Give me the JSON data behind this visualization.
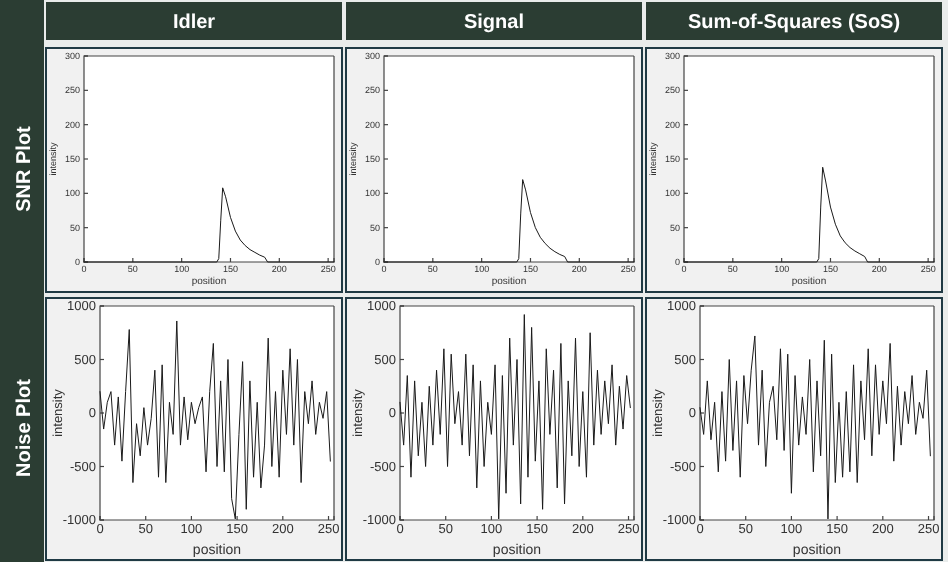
{
  "chart_data": [
    {
      "type": "line",
      "title": "Idler",
      "annotations": [
        "SNR Plot"
      ],
      "xlabel": "position",
      "ylabel": "intensity",
      "xlim": [
        0,
        256
      ],
      "xticks": [
        0,
        50,
        100,
        150,
        200,
        250
      ],
      "ylim": [
        0,
        300
      ],
      "yticks": [
        0,
        50,
        100,
        150,
        200,
        250,
        300
      ],
      "x": [
        0,
        136,
        138,
        140,
        142,
        145,
        150,
        155,
        160,
        165,
        170,
        175,
        180,
        185,
        188,
        256
      ],
      "series": [
        {
          "color": "#1a1a1a",
          "values": [
            0,
            0,
            5,
            60,
            108,
            95,
            65,
            45,
            32,
            24,
            18,
            14,
            10,
            7,
            0,
            0
          ]
        }
      ]
    },
    {
      "type": "line",
      "title": "Signal",
      "xlabel": "position",
      "ylabel": "intensity",
      "xlim": [
        0,
        256
      ],
      "xticks": [
        0,
        50,
        100,
        150,
        200,
        250
      ],
      "ylim": [
        0,
        300
      ],
      "yticks": [
        0,
        50,
        100,
        150,
        200,
        250,
        300
      ],
      "x": [
        0,
        136,
        138,
        140,
        142,
        145,
        150,
        155,
        160,
        165,
        170,
        175,
        180,
        185,
        188,
        256
      ],
      "series": [
        {
          "color": "#1a1a1a",
          "values": [
            0,
            0,
            5,
            70,
            120,
            105,
            72,
            50,
            36,
            27,
            20,
            15,
            11,
            8,
            0,
            0
          ]
        }
      ]
    },
    {
      "type": "line",
      "title": "Sum-of-Squares (SoS)",
      "xlabel": "position",
      "ylabel": "intensity",
      "xlim": [
        0,
        256
      ],
      "xticks": [
        0,
        50,
        100,
        150,
        200,
        250
      ],
      "ylim": [
        0,
        300
      ],
      "yticks": [
        0,
        50,
        100,
        150,
        200,
        250,
        300
      ],
      "x": [
        0,
        136,
        138,
        140,
        142,
        145,
        150,
        155,
        160,
        165,
        170,
        175,
        180,
        185,
        188,
        256
      ],
      "series": [
        {
          "color": "#1a1a1a",
          "values": [
            0,
            0,
            5,
            80,
            138,
            118,
            80,
            55,
            38,
            28,
            21,
            16,
            12,
            8,
            0,
            0
          ]
        }
      ]
    },
    {
      "type": "line",
      "annotations": [
        "Noise Plot"
      ],
      "xlabel": "position",
      "ylabel": "intensity",
      "xlim": [
        0,
        256
      ],
      "xticks": [
        0,
        50,
        100,
        150,
        200,
        250
      ],
      "ylim": [
        -1000,
        1000
      ],
      "yticks": [
        -1000,
        -500,
        0,
        500,
        1000
      ],
      "x": [
        0,
        4,
        8,
        12,
        16,
        20,
        24,
        28,
        32,
        36,
        40,
        44,
        48,
        52,
        56,
        60,
        64,
        68,
        72,
        76,
        80,
        84,
        88,
        92,
        96,
        100,
        104,
        108,
        112,
        116,
        120,
        124,
        128,
        132,
        136,
        140,
        144,
        148,
        152,
        156,
        160,
        164,
        168,
        172,
        176,
        180,
        184,
        188,
        192,
        196,
        200,
        204,
        208,
        212,
        216,
        220,
        224,
        228,
        232,
        236,
        240,
        244,
        248,
        252
      ],
      "series": [
        {
          "color": "#1a1a1a",
          "values": [
            200,
            -150,
            100,
            200,
            -300,
            150,
            -450,
            200,
            780,
            -650,
            -100,
            -400,
            50,
            -300,
            -50,
            400,
            -600,
            450,
            -650,
            100,
            -200,
            860,
            -300,
            150,
            -250,
            100,
            -100,
            50,
            150,
            -550,
            200,
            650,
            -500,
            300,
            -550,
            500,
            -800,
            -990,
            -200,
            480,
            -900,
            300,
            -600,
            100,
            -700,
            -300,
            700,
            -500,
            200,
            -600,
            400,
            -200,
            600,
            -300,
            500,
            -650,
            200,
            -100,
            300,
            -200,
            100,
            -50,
            200,
            -450
          ]
        }
      ]
    },
    {
      "type": "line",
      "xlabel": "position",
      "ylabel": "intensity",
      "xlim": [
        0,
        256
      ],
      "xticks": [
        0,
        50,
        100,
        150,
        200,
        250
      ],
      "ylim": [
        -1000,
        1000
      ],
      "yticks": [
        -1000,
        -500,
        0,
        500,
        1000
      ],
      "x": [
        0,
        4,
        8,
        12,
        16,
        20,
        24,
        28,
        32,
        36,
        40,
        44,
        48,
        52,
        56,
        60,
        64,
        68,
        72,
        76,
        80,
        84,
        88,
        92,
        96,
        100,
        104,
        108,
        112,
        116,
        120,
        124,
        128,
        132,
        136,
        140,
        144,
        148,
        152,
        156,
        160,
        164,
        168,
        172,
        176,
        180,
        184,
        188,
        192,
        196,
        200,
        204,
        208,
        212,
        216,
        220,
        224,
        228,
        232,
        236,
        240,
        244,
        248,
        252
      ],
      "series": [
        {
          "color": "#1a1a1a",
          "values": [
            100,
            -300,
            350,
            -600,
            300,
            -400,
            100,
            -500,
            250,
            -300,
            400,
            -200,
            600,
            -500,
            550,
            -100,
            200,
            -300,
            550,
            -400,
            450,
            -700,
            300,
            -500,
            100,
            -200,
            450,
            -990,
            350,
            -750,
            700,
            -300,
            500,
            -850,
            920,
            -600,
            800,
            -450,
            300,
            -900,
            600,
            -200,
            400,
            -700,
            650,
            -850,
            300,
            -400,
            700,
            -500,
            200,
            -600,
            750,
            -300,
            400,
            -200,
            300,
            -100,
            450,
            -300,
            250,
            -150,
            350,
            50
          ]
        }
      ]
    },
    {
      "type": "line",
      "xlabel": "position",
      "ylabel": "intensity",
      "xlim": [
        0,
        256
      ],
      "xticks": [
        0,
        50,
        100,
        150,
        200,
        250
      ],
      "ylim": [
        -1000,
        1000
      ],
      "yticks": [
        -1000,
        -500,
        0,
        500,
        1000
      ],
      "x": [
        0,
        4,
        8,
        12,
        16,
        20,
        24,
        28,
        32,
        36,
        40,
        44,
        48,
        52,
        56,
        60,
        64,
        68,
        72,
        76,
        80,
        84,
        88,
        92,
        96,
        100,
        104,
        108,
        112,
        116,
        120,
        124,
        128,
        132,
        136,
        140,
        144,
        148,
        152,
        156,
        160,
        164,
        168,
        172,
        176,
        180,
        184,
        188,
        192,
        196,
        200,
        204,
        208,
        212,
        216,
        220,
        224,
        228,
        232,
        236,
        240,
        244,
        248,
        252
      ],
      "series": [
        {
          "color": "#1a1a1a",
          "values": [
            50,
            -200,
            300,
            -250,
            100,
            -550,
            200,
            -450,
            500,
            -350,
            300,
            -600,
            350,
            -100,
            400,
            720,
            -300,
            400,
            -500,
            100,
            250,
            -250,
            600,
            -350,
            550,
            -750,
            350,
            -300,
            150,
            -200,
            500,
            -550,
            300,
            -400,
            680,
            -990,
            550,
            -650,
            100,
            -600,
            200,
            -550,
            450,
            -650,
            300,
            -250,
            600,
            -400,
            450,
            -200,
            300,
            -100,
            650,
            -450,
            250,
            -300,
            200,
            -100,
            350,
            -200,
            100,
            -50,
            400,
            -400
          ]
        }
      ]
    }
  ]
}
